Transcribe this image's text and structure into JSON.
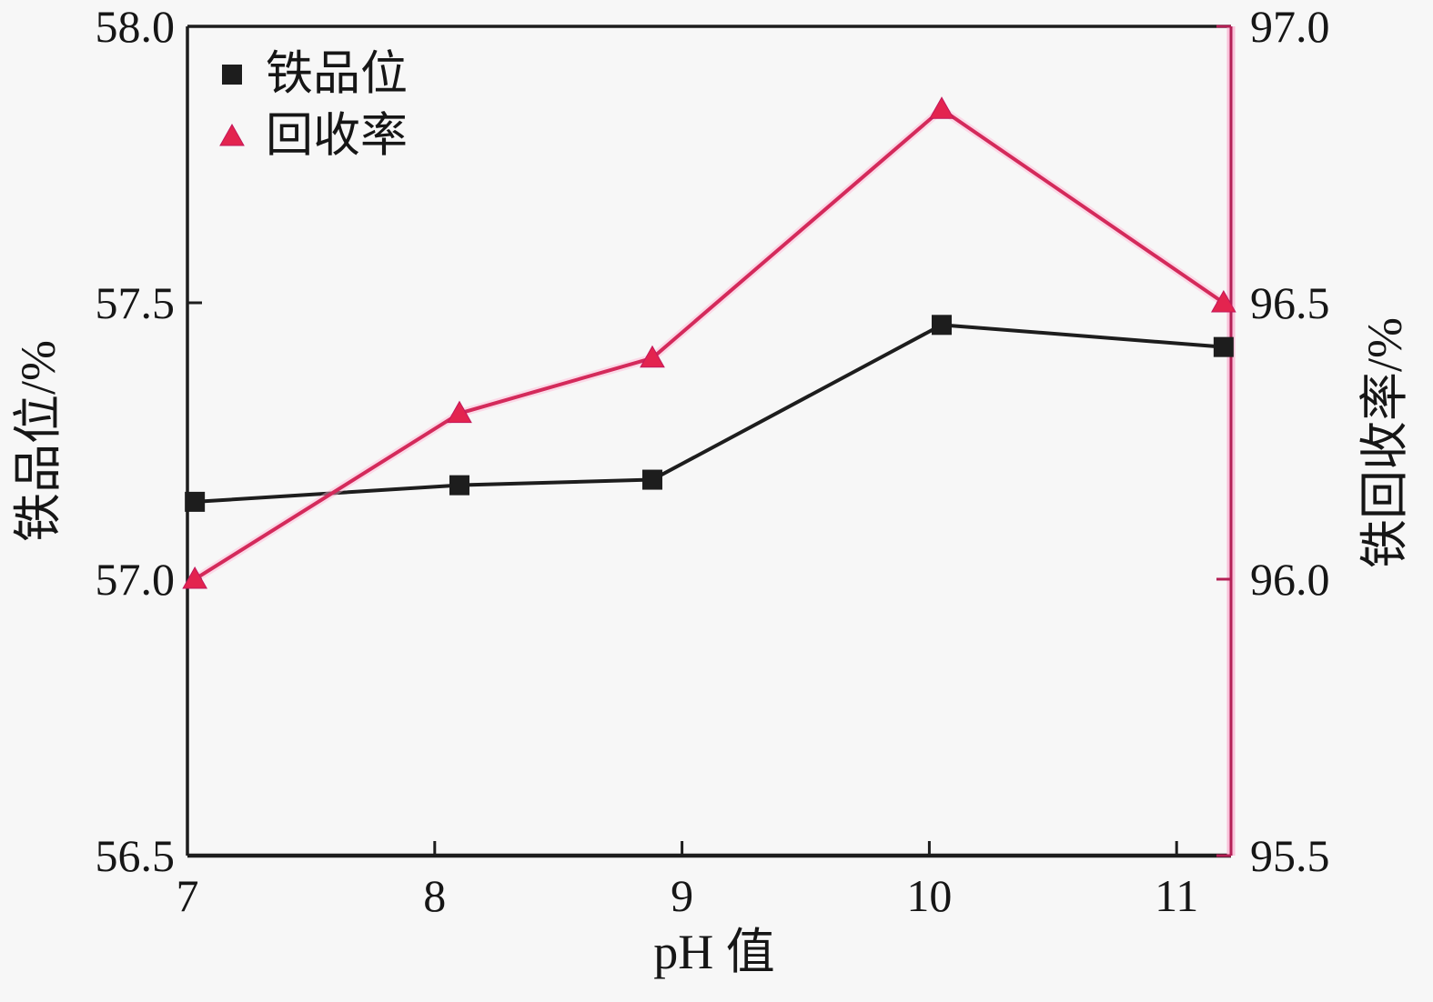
{
  "figure": {
    "background": "#f7f7f7",
    "axis_color": "#1d1d1d",
    "right_axis_color": "#b42055",
    "right_axis_halo": "#f9c2da",
    "text_color": "#161616"
  },
  "chart_data": {
    "type": "line",
    "title": "",
    "xlabel": "pH 值",
    "ylabel_left": "铁品位/%",
    "ylabel_right": "铁回收率/%",
    "xlim": [
      7,
      11.22
    ],
    "xticks": [
      7,
      8,
      9,
      10,
      11
    ],
    "xtick_labels": [
      "7",
      "8",
      "9",
      "10",
      "11"
    ],
    "ylim_left": [
      56.5,
      58.0
    ],
    "yticks_left": [
      56.5,
      57.0,
      57.5,
      58.0
    ],
    "ytick_labels_left": [
      "56.5",
      "57.0",
      "57.5",
      "58.0"
    ],
    "ylim_right": [
      95.5,
      97.0
    ],
    "yticks_right": [
      95.5,
      96.0,
      96.5,
      97.0
    ],
    "ytick_labels_right": [
      "95.5",
      "96.0",
      "96.5",
      "97.0"
    ],
    "grid": false,
    "legend_position": "top-left",
    "legend": [
      "铁品位",
      "回收率"
    ],
    "series": [
      {
        "name": "铁品位",
        "axis": "left",
        "marker": "square",
        "line_color": "#1d1d1d",
        "marker_color": "#1d1d1d",
        "x": [
          7.03,
          8.1,
          8.88,
          10.05,
          11.19
        ],
        "y": [
          57.14,
          57.17,
          57.18,
          57.46,
          57.42
        ]
      },
      {
        "name": "回收率",
        "axis": "right",
        "marker": "triangle",
        "line_color": "#d42a5b",
        "line_halo": "#ffb3d2",
        "marker_color": "#e3244f",
        "x": [
          7.03,
          8.1,
          8.88,
          10.05,
          11.19
        ],
        "y": [
          96.0,
          96.3,
          96.4,
          96.85,
          96.5
        ]
      }
    ]
  }
}
